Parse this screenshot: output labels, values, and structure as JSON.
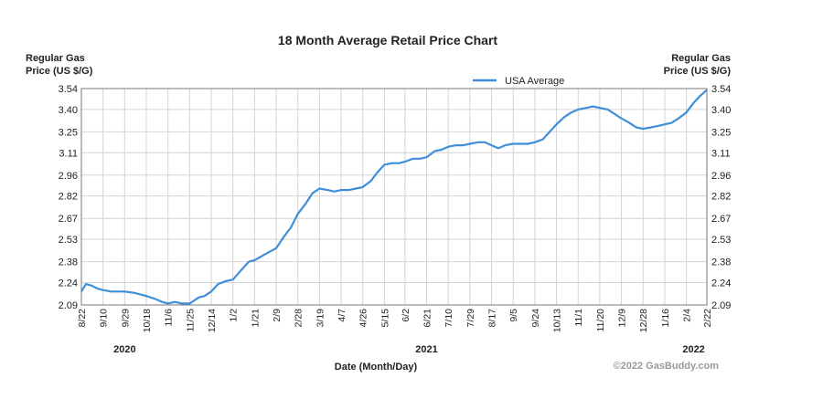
{
  "chart_data": {
    "type": "line",
    "title": "18 Month Average Retail Price Chart",
    "ylabel_left": [
      "Regular Gas",
      "Price (US $/G)"
    ],
    "ylabel_right": [
      "Regular Gas",
      "Price (US $/G)"
    ],
    "xlabel": "Date (Month/Day)",
    "ylim": [
      2.09,
      3.54
    ],
    "y_ticks": [
      3.54,
      3.4,
      3.25,
      3.11,
      2.96,
      2.82,
      2.67,
      2.53,
      2.38,
      2.24,
      2.09
    ],
    "y_tick_labels": [
      "3.54",
      "3.40",
      "3.25",
      "3.11",
      "2.96",
      "2.82",
      "2.67",
      "2.53",
      "2.38",
      "2.24",
      "2.09"
    ],
    "x_ticks": [
      "8/22",
      "9/10",
      "9/29",
      "10/18",
      "11/6",
      "11/25",
      "12/14",
      "1/2",
      "1/21",
      "2/9",
      "2/28",
      "3/19",
      "4/7",
      "4/26",
      "5/15",
      "6/2",
      "6/21",
      "7/10",
      "7/29",
      "8/17",
      "9/5",
      "9/24",
      "10/13",
      "11/1",
      "11/20",
      "12/9",
      "12/28",
      "1/16",
      "2/4",
      "2/22"
    ],
    "year_labels": [
      {
        "label": "2020",
        "at_tick": "9/29"
      },
      {
        "label": "2021",
        "at_tick": "6/21"
      },
      {
        "label": "2022",
        "at_tick": "2/4"
      }
    ],
    "grid": true,
    "legend_position": "top-right",
    "credit": "©2022 GasBuddy.com",
    "series": [
      {
        "name": "USA Average",
        "color": "#3f8fd8",
        "points": [
          [
            "8/22",
            2.18
          ],
          [
            "8/26",
            2.23
          ],
          [
            "8/31",
            2.22
          ],
          [
            "9/5",
            2.2
          ],
          [
            "9/10",
            2.19
          ],
          [
            "9/17",
            2.18
          ],
          [
            "9/24",
            2.18
          ],
          [
            "9/29",
            2.18
          ],
          [
            "10/8",
            2.17
          ],
          [
            "10/18",
            2.15
          ],
          [
            "10/26",
            2.13
          ],
          [
            "11/1",
            2.11
          ],
          [
            "11/6",
            2.1
          ],
          [
            "11/12",
            2.11
          ],
          [
            "11/18",
            2.1
          ],
          [
            "11/25",
            2.1
          ],
          [
            "12/3",
            2.14
          ],
          [
            "12/8",
            2.15
          ],
          [
            "12/14",
            2.18
          ],
          [
            "12/20",
            2.23
          ],
          [
            "12/27",
            2.25
          ],
          [
            "1/2",
            2.26
          ],
          [
            "1/10",
            2.33
          ],
          [
            "1/16",
            2.38
          ],
          [
            "1/21",
            2.39
          ],
          [
            "1/28",
            2.42
          ],
          [
            "2/4",
            2.45
          ],
          [
            "2/9",
            2.47
          ],
          [
            "2/16",
            2.55
          ],
          [
            "2/22",
            2.61
          ],
          [
            "2/28",
            2.7
          ],
          [
            "3/7",
            2.77
          ],
          [
            "3/13",
            2.84
          ],
          [
            "3/19",
            2.87
          ],
          [
            "3/26",
            2.86
          ],
          [
            "4/1",
            2.85
          ],
          [
            "4/7",
            2.86
          ],
          [
            "4/14",
            2.86
          ],
          [
            "4/20",
            2.87
          ],
          [
            "4/26",
            2.88
          ],
          [
            "5/3",
            2.92
          ],
          [
            "5/9",
            2.98
          ],
          [
            "5/15",
            3.03
          ],
          [
            "5/22",
            3.04
          ],
          [
            "5/28",
            3.04
          ],
          [
            "6/2",
            3.05
          ],
          [
            "6/9",
            3.07
          ],
          [
            "6/15",
            3.07
          ],
          [
            "6/21",
            3.08
          ],
          [
            "6/28",
            3.12
          ],
          [
            "7/4",
            3.13
          ],
          [
            "7/10",
            3.15
          ],
          [
            "7/17",
            3.16
          ],
          [
            "7/23",
            3.16
          ],
          [
            "7/29",
            3.17
          ],
          [
            "8/5",
            3.18
          ],
          [
            "8/11",
            3.18
          ],
          [
            "8/17",
            3.16
          ],
          [
            "8/23",
            3.14
          ],
          [
            "8/29",
            3.16
          ],
          [
            "9/5",
            3.17
          ],
          [
            "9/12",
            3.17
          ],
          [
            "9/18",
            3.17
          ],
          [
            "9/24",
            3.18
          ],
          [
            "10/1",
            3.2
          ],
          [
            "10/7",
            3.25
          ],
          [
            "10/13",
            3.3
          ],
          [
            "10/20",
            3.35
          ],
          [
            "10/26",
            3.38
          ],
          [
            "11/1",
            3.4
          ],
          [
            "11/8",
            3.41
          ],
          [
            "11/14",
            3.42
          ],
          [
            "11/20",
            3.41
          ],
          [
            "11/27",
            3.4
          ],
          [
            "12/3",
            3.37
          ],
          [
            "12/9",
            3.34
          ],
          [
            "12/16",
            3.31
          ],
          [
            "12/22",
            3.28
          ],
          [
            "12/28",
            3.27
          ],
          [
            "1/4",
            3.28
          ],
          [
            "1/10",
            3.29
          ],
          [
            "1/16",
            3.3
          ],
          [
            "1/22",
            3.31
          ],
          [
            "1/28",
            3.34
          ],
          [
            "2/4",
            3.38
          ],
          [
            "2/10",
            3.44
          ],
          [
            "2/16",
            3.49
          ],
          [
            "2/22",
            3.53
          ]
        ]
      }
    ]
  }
}
